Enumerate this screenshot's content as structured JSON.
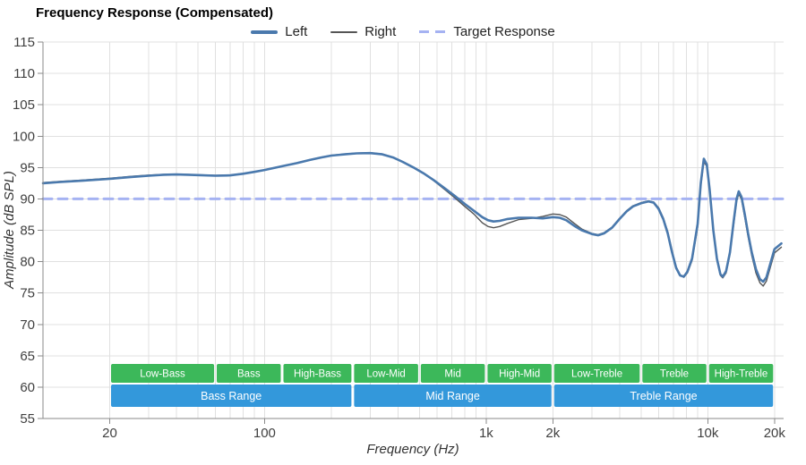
{
  "chart_data": {
    "type": "line",
    "title": "Frequency Response (Compensated)",
    "xlabel": "Frequency (Hz)",
    "ylabel": "Amplitude (dB SPL)",
    "x_scale": "log",
    "xlim": [
      10,
      22000
    ],
    "ylim": [
      55,
      115
    ],
    "grid": true,
    "y_ticks": [
      55,
      60,
      65,
      70,
      75,
      80,
      85,
      90,
      95,
      100,
      105,
      110,
      115
    ],
    "x_ticks": [
      {
        "f": 20,
        "label": "20"
      },
      {
        "f": 100,
        "label": "100"
      },
      {
        "f": 1000,
        "label": "1k"
      },
      {
        "f": 2000,
        "label": "2k"
      },
      {
        "f": 10000,
        "label": "10k"
      },
      {
        "f": 20000,
        "label": "20k"
      }
    ],
    "legend": [
      {
        "label": "Left",
        "color": "#4a79ad",
        "style": "solid-thick"
      },
      {
        "label": "Right",
        "color": "#555555",
        "style": "solid-thin"
      },
      {
        "label": "Target Response",
        "color": "#a5b2f2",
        "style": "dashed"
      }
    ],
    "target_level_db": 90,
    "series": [
      {
        "name": "Left",
        "color": "#4a79ad",
        "width": 2.6,
        "points": [
          [
            10,
            92.5
          ],
          [
            12,
            92.7
          ],
          [
            15,
            92.9
          ],
          [
            20,
            93.2
          ],
          [
            25,
            93.5
          ],
          [
            30,
            93.7
          ],
          [
            35,
            93.85
          ],
          [
            40,
            93.9
          ],
          [
            45,
            93.85
          ],
          [
            50,
            93.8
          ],
          [
            60,
            93.7
          ],
          [
            70,
            93.75
          ],
          [
            80,
            94.0
          ],
          [
            90,
            94.3
          ],
          [
            100,
            94.6
          ],
          [
            120,
            95.2
          ],
          [
            140,
            95.7
          ],
          [
            160,
            96.2
          ],
          [
            180,
            96.6
          ],
          [
            200,
            96.9
          ],
          [
            230,
            97.1
          ],
          [
            260,
            97.25
          ],
          [
            300,
            97.3
          ],
          [
            340,
            97.1
          ],
          [
            380,
            96.6
          ],
          [
            420,
            95.9
          ],
          [
            470,
            95.0
          ],
          [
            520,
            94.1
          ],
          [
            580,
            93.0
          ],
          [
            650,
            91.7
          ],
          [
            720,
            90.5
          ],
          [
            800,
            89.2
          ],
          [
            880,
            88.1
          ],
          [
            960,
            87.1
          ],
          [
            1020,
            86.6
          ],
          [
            1080,
            86.4
          ],
          [
            1150,
            86.5
          ],
          [
            1250,
            86.8
          ],
          [
            1400,
            87.0
          ],
          [
            1600,
            87.0
          ],
          [
            1800,
            86.9
          ],
          [
            2000,
            87.1
          ],
          [
            2150,
            87.0
          ],
          [
            2300,
            86.6
          ],
          [
            2500,
            85.7
          ],
          [
            2700,
            85.0
          ],
          [
            3000,
            84.4
          ],
          [
            3200,
            84.2
          ],
          [
            3400,
            84.5
          ],
          [
            3700,
            85.4
          ],
          [
            4000,
            86.8
          ],
          [
            4300,
            88.0
          ],
          [
            4600,
            88.8
          ],
          [
            5000,
            89.3
          ],
          [
            5400,
            89.6
          ],
          [
            5700,
            89.4
          ],
          [
            6000,
            88.4
          ],
          [
            6300,
            86.8
          ],
          [
            6600,
            84.5
          ],
          [
            6900,
            81.5
          ],
          [
            7200,
            79.0
          ],
          [
            7500,
            77.8
          ],
          [
            7800,
            77.6
          ],
          [
            8100,
            78.4
          ],
          [
            8500,
            80.5
          ],
          [
            9000,
            86.0
          ],
          [
            9300,
            92.5
          ],
          [
            9600,
            96.4
          ],
          [
            9900,
            95.5
          ],
          [
            10200,
            91.5
          ],
          [
            10600,
            85.0
          ],
          [
            11000,
            80.5
          ],
          [
            11400,
            78.0
          ],
          [
            11700,
            77.6
          ],
          [
            12100,
            78.5
          ],
          [
            12600,
            81.5
          ],
          [
            13100,
            86.5
          ],
          [
            13500,
            90.0
          ],
          [
            13800,
            91.2
          ],
          [
            14200,
            90.3
          ],
          [
            14700,
            87.5
          ],
          [
            15200,
            84.5
          ],
          [
            15800,
            81.5
          ],
          [
            16500,
            78.8
          ],
          [
            17200,
            77.2
          ],
          [
            17800,
            76.8
          ],
          [
            18400,
            77.5
          ],
          [
            19200,
            79.8
          ],
          [
            20000,
            82.0
          ],
          [
            21500,
            82.9
          ]
        ]
      },
      {
        "name": "Right",
        "color": "#555555",
        "width": 1.4,
        "points": [
          [
            10,
            92.6
          ],
          [
            12,
            92.8
          ],
          [
            15,
            93.0
          ],
          [
            20,
            93.3
          ],
          [
            25,
            93.6
          ],
          [
            30,
            93.8
          ],
          [
            35,
            93.9
          ],
          [
            40,
            93.95
          ],
          [
            45,
            93.9
          ],
          [
            50,
            93.85
          ],
          [
            60,
            93.75
          ],
          [
            70,
            93.8
          ],
          [
            80,
            94.05
          ],
          [
            90,
            94.35
          ],
          [
            100,
            94.65
          ],
          [
            120,
            95.25
          ],
          [
            140,
            95.75
          ],
          [
            160,
            96.25
          ],
          [
            180,
            96.65
          ],
          [
            200,
            96.95
          ],
          [
            230,
            97.15
          ],
          [
            260,
            97.3
          ],
          [
            300,
            97.35
          ],
          [
            340,
            97.15
          ],
          [
            380,
            96.65
          ],
          [
            420,
            95.95
          ],
          [
            470,
            95.05
          ],
          [
            520,
            94.1
          ],
          [
            580,
            92.9
          ],
          [
            650,
            91.5
          ],
          [
            720,
            90.2
          ],
          [
            800,
            88.8
          ],
          [
            880,
            87.6
          ],
          [
            960,
            86.2
          ],
          [
            1020,
            85.6
          ],
          [
            1080,
            85.4
          ],
          [
            1150,
            85.6
          ],
          [
            1250,
            86.1
          ],
          [
            1400,
            86.7
          ],
          [
            1600,
            86.9
          ],
          [
            1800,
            87.2
          ],
          [
            2000,
            87.6
          ],
          [
            2150,
            87.5
          ],
          [
            2300,
            87.1
          ],
          [
            2500,
            86.1
          ],
          [
            2700,
            85.2
          ],
          [
            3000,
            84.5
          ],
          [
            3200,
            84.3
          ],
          [
            3400,
            84.6
          ],
          [
            3700,
            85.5
          ],
          [
            4000,
            86.9
          ],
          [
            4300,
            88.1
          ],
          [
            4600,
            88.9
          ],
          [
            5000,
            89.4
          ],
          [
            5400,
            89.7
          ],
          [
            5700,
            89.5
          ],
          [
            6000,
            88.6
          ],
          [
            6300,
            87.0
          ],
          [
            6600,
            84.8
          ],
          [
            6900,
            81.8
          ],
          [
            7200,
            79.2
          ],
          [
            7500,
            77.9
          ],
          [
            7800,
            77.5
          ],
          [
            8100,
            78.2
          ],
          [
            8500,
            80.2
          ],
          [
            9000,
            85.5
          ],
          [
            9300,
            92.0
          ],
          [
            9600,
            95.9
          ],
          [
            9900,
            95.2
          ],
          [
            10200,
            91.2
          ],
          [
            10600,
            84.8
          ],
          [
            11000,
            80.2
          ],
          [
            11400,
            77.8
          ],
          [
            11700,
            77.4
          ],
          [
            12100,
            78.2
          ],
          [
            12600,
            81.2
          ],
          [
            13100,
            86.0
          ],
          [
            13500,
            89.6
          ],
          [
            13800,
            90.8
          ],
          [
            14200,
            89.9
          ],
          [
            14700,
            87.0
          ],
          [
            15200,
            84.0
          ],
          [
            15800,
            81.0
          ],
          [
            16500,
            78.2
          ],
          [
            17200,
            76.6
          ],
          [
            17800,
            76.1
          ],
          [
            18400,
            76.9
          ],
          [
            19200,
            79.2
          ],
          [
            20000,
            81.4
          ],
          [
            21500,
            82.3
          ]
        ]
      },
      {
        "name": "Target Response",
        "color": "#a5b2f2",
        "width": 3,
        "dash": "10 7",
        "points": [
          [
            10,
            90
          ],
          [
            22000,
            90
          ]
        ]
      }
    ],
    "bands": {
      "sub_color": "#3cb85a",
      "main_color": "#3398db",
      "sub": [
        {
          "label": "Low-Bass",
          "from": 20,
          "to": 60
        },
        {
          "label": "Bass",
          "from": 60,
          "to": 120
        },
        {
          "label": "High-Bass",
          "from": 120,
          "to": 250
        },
        {
          "label": "Low-Mid",
          "from": 250,
          "to": 500
        },
        {
          "label": "Mid",
          "from": 500,
          "to": 1000
        },
        {
          "label": "High-Mid",
          "from": 1000,
          "to": 2000
        },
        {
          "label": "Low-Treble",
          "from": 2000,
          "to": 5000
        },
        {
          "label": "Treble",
          "from": 5000,
          "to": 10000
        },
        {
          "label": "High-Treble",
          "from": 10000,
          "to": 20000
        }
      ],
      "main": [
        {
          "label": "Bass Range",
          "from": 20,
          "to": 250
        },
        {
          "label": "Mid Range",
          "from": 250,
          "to": 2000
        },
        {
          "label": "Treble Range",
          "from": 2000,
          "to": 20000
        }
      ]
    }
  }
}
